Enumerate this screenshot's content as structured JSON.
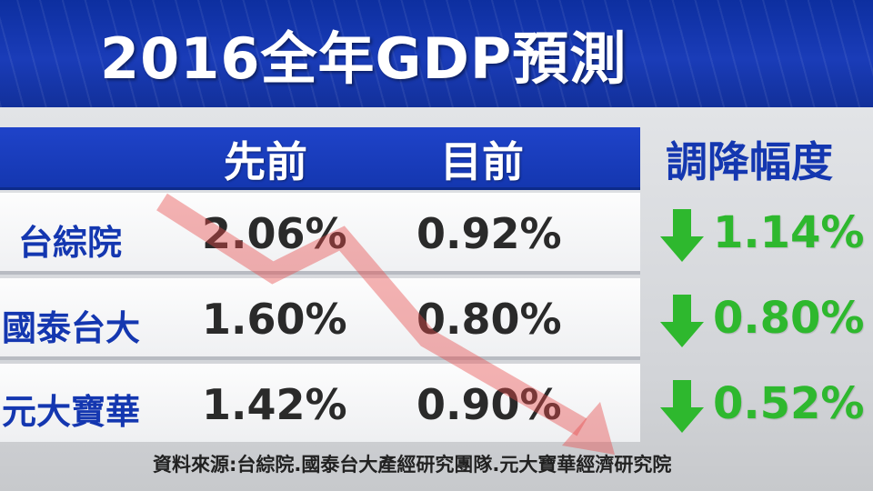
{
  "title": "2016全年GDP預測",
  "table": {
    "col_previous": "先前",
    "col_current": "目前",
    "col_change": "調降幅度"
  },
  "chart_data": {
    "type": "table",
    "title": "2016全年GDP預測",
    "columns": [
      "先前",
      "目前",
      "調降幅度"
    ],
    "rows": [
      {
        "institution": "台綜院",
        "previous": "2.06%",
        "current": "0.92%",
        "change": "1.14%"
      },
      {
        "institution": "國泰台大",
        "previous": "1.60%",
        "current": "0.80%",
        "change": "0.80%"
      },
      {
        "institution": "元大寶華",
        "previous": "1.42%",
        "current": "0.90%",
        "change": "0.52%"
      }
    ],
    "change_direction": "down",
    "change_icon": "down-arrow-icon"
  },
  "source": "資料來源:台綜院.國泰台大產經研究團隊.元大寶華經濟研究院",
  "colors": {
    "header_blue": "#1437b0",
    "change_green": "#2eb82e",
    "trend_red": "#e84a4a"
  }
}
